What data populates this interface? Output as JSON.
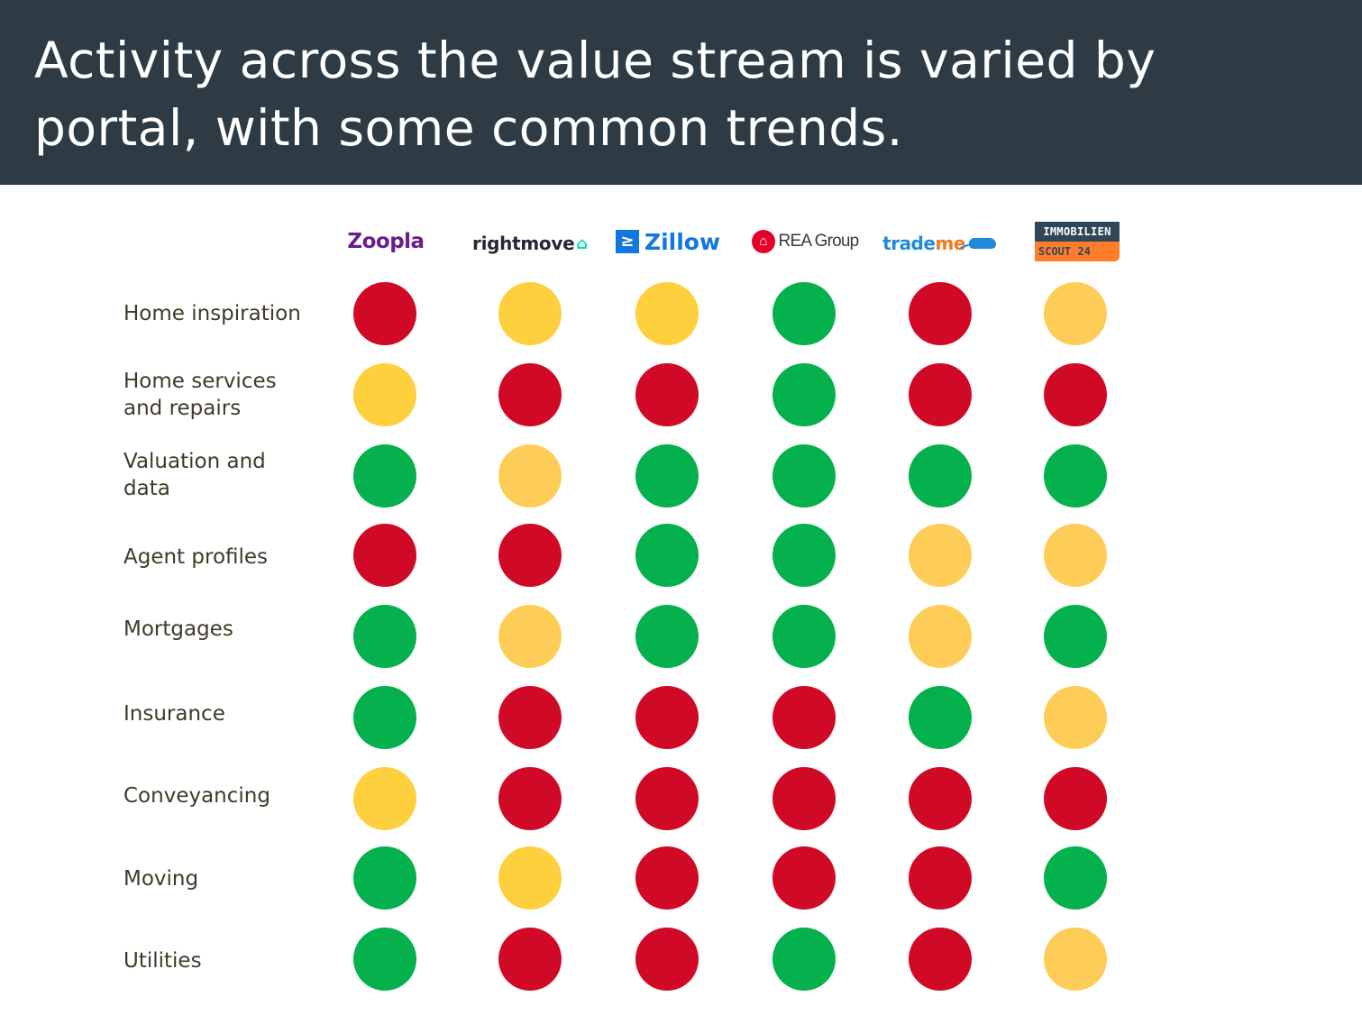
{
  "title": "Activity across the value stream is varied by portal, with some common trends.",
  "colors": {
    "header_bg": "#2e3b44",
    "red": "#d00a26",
    "green": "#05b14c",
    "yellow": "#fed03d",
    "light_yellow": "#fecd57"
  },
  "portals": [
    {
      "name": "Zoopla",
      "logo_text": "Zoopla"
    },
    {
      "name": "Rightmove",
      "logo_text": "rightmove"
    },
    {
      "name": "Zillow",
      "logo_text": "Zillow"
    },
    {
      "name": "REA Group",
      "logo_text": "REA Group"
    },
    {
      "name": "Trade Me",
      "logo_text_main": "trade",
      "logo_text_accent": "me"
    },
    {
      "name": "ImmobilienScout24",
      "logo_text_top": "IMMOBILIEN",
      "logo_text_bottom": "SCOUT 24"
    }
  ],
  "rows": [
    {
      "label": "Home inspiration",
      "status": [
        "red",
        "yellow",
        "yellow",
        "green",
        "red",
        "light_yellow"
      ]
    },
    {
      "label": "Home services\nand repairs",
      "status": [
        "yellow",
        "red",
        "red",
        "green",
        "red",
        "red"
      ]
    },
    {
      "label": "Valuation and\ndata",
      "status": [
        "green",
        "light_yellow",
        "green",
        "green",
        "green",
        "green"
      ]
    },
    {
      "label": "Agent profiles",
      "status": [
        "red",
        "red",
        "green",
        "green",
        "light_yellow",
        "light_yellow"
      ]
    },
    {
      "label": "Mortgages",
      "status": [
        "green",
        "light_yellow",
        "green",
        "green",
        "light_yellow",
        "green"
      ]
    },
    {
      "label": "Insurance",
      "status": [
        "green",
        "red",
        "red",
        "red",
        "green",
        "light_yellow"
      ]
    },
    {
      "label": "Conveyancing",
      "status": [
        "yellow",
        "red",
        "red",
        "red",
        "red",
        "red"
      ]
    },
    {
      "label": "Moving",
      "status": [
        "green",
        "yellow",
        "red",
        "red",
        "red",
        "green"
      ]
    },
    {
      "label": "Utilities",
      "status": [
        "green",
        "red",
        "red",
        "green",
        "red",
        "light_yellow"
      ]
    }
  ]
}
